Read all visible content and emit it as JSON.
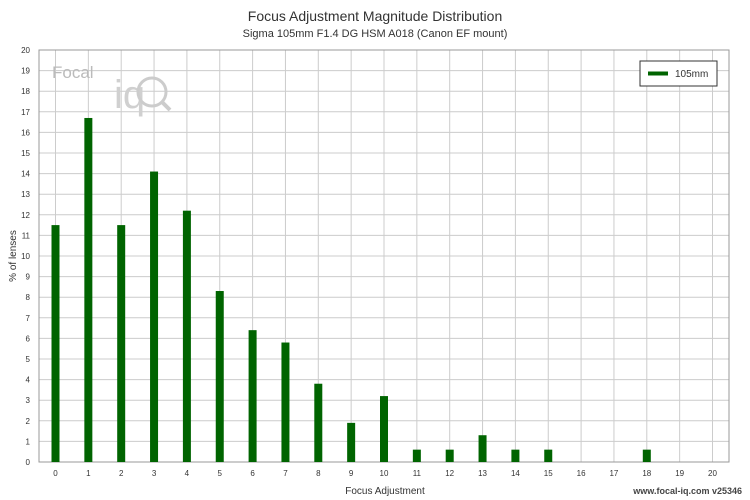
{
  "header": {
    "title": "Focus Adjustment Magnitude Distribution",
    "subtitle": "Sigma 105mm F1.4 DG HSM A018 (Canon EF mount)"
  },
  "branding": {
    "logo_text_focal": "Focal",
    "logo_text_iq": "iq",
    "credit": "www.focal-iq.com  v25346"
  },
  "chart_data": {
    "type": "bar",
    "title": "Focus Adjustment Magnitude Distribution",
    "subtitle": "Sigma 105mm F1.4 DG HSM A018 (Canon EF mount)",
    "xlabel": "Focus Adjustment",
    "ylabel": "% of lenses",
    "categories": [
      0,
      1,
      2,
      3,
      4,
      5,
      6,
      7,
      8,
      9,
      10,
      11,
      12,
      13,
      14,
      15,
      16,
      17,
      18,
      19,
      20
    ],
    "series": [
      {
        "name": "105mm",
        "color": "#006400",
        "values": [
          11.5,
          16.7,
          11.5,
          14.1,
          12.2,
          8.3,
          6.4,
          5.8,
          3.8,
          1.9,
          3.2,
          0.6,
          0.6,
          1.3,
          0.6,
          0.6,
          0,
          0,
          0.6,
          0,
          0
        ]
      }
    ],
    "xlim": [
      0,
      20
    ],
    "ylim": [
      0,
      20
    ],
    "y_ticks": [
      0,
      1,
      2,
      3,
      4,
      5,
      6,
      7,
      8,
      9,
      10,
      11,
      12,
      13,
      14,
      15,
      16,
      17,
      18,
      19,
      20
    ],
    "x_ticks": [
      0,
      1,
      2,
      3,
      4,
      5,
      6,
      7,
      8,
      9,
      10,
      11,
      12,
      13,
      14,
      15,
      16,
      17,
      18,
      19,
      20
    ],
    "grid": true,
    "legend_position": "top-right"
  }
}
